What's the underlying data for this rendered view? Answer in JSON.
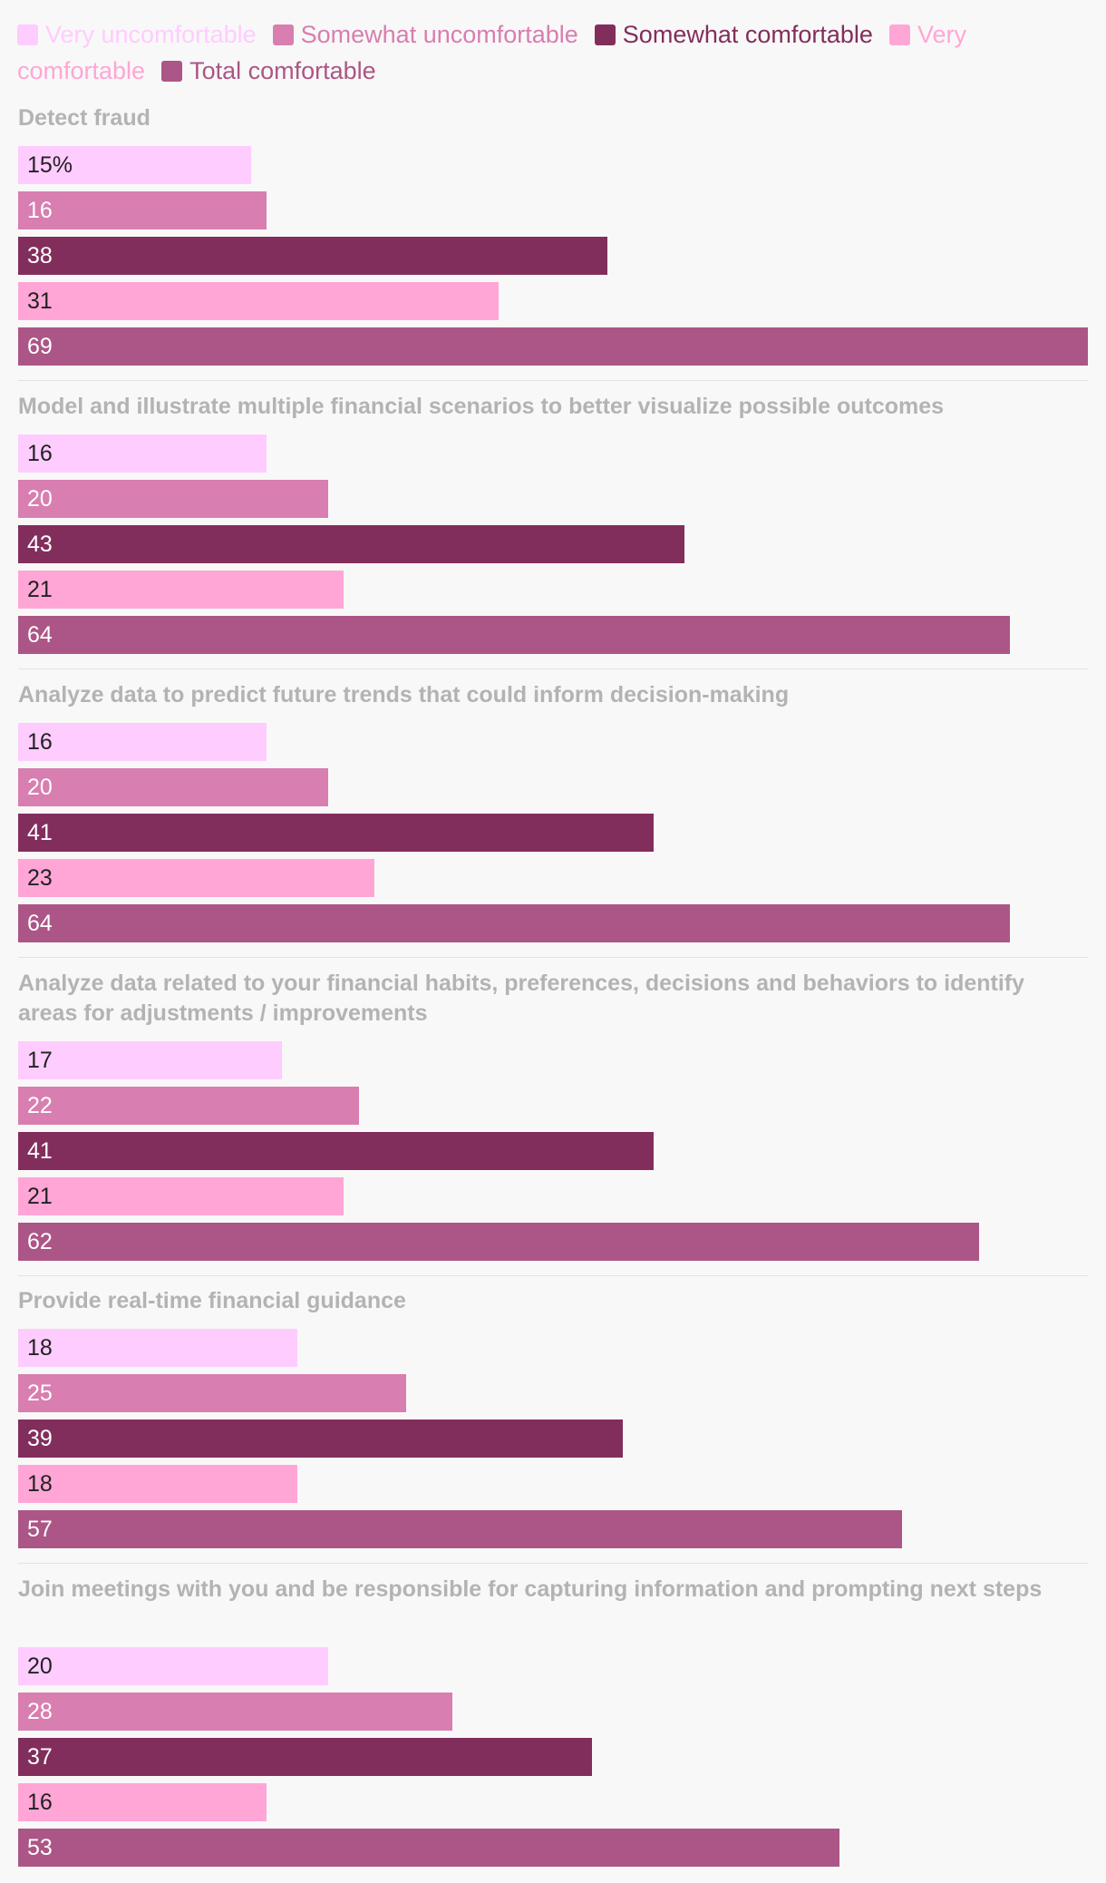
{
  "chart_data": {
    "type": "bar",
    "orientation": "horizontal",
    "unit": "%",
    "xlim": [
      0,
      69
    ],
    "grid": false,
    "legend_position": "top",
    "series": [
      {
        "name": "Very uncomfortable",
        "color": "#ffccff",
        "text_color": "#222222"
      },
      {
        "name": "Somewhat uncomfortable",
        "color": "#d87eb0",
        "text_color": "#ffffff"
      },
      {
        "name": "Somewhat comfortable",
        "color": "#822e5c",
        "text_color": "#ffffff"
      },
      {
        "name": "Very comfortable",
        "color": "#ffa6d6",
        "text_color": "#222222"
      },
      {
        "name": "Total comfortable",
        "color": "#ab5686",
        "text_color": "#ffffff"
      }
    ],
    "groups": [
      {
        "title": "Detect fraud",
        "values": [
          15,
          16,
          38,
          31,
          69
        ],
        "labels": [
          "15%",
          "16",
          "38",
          "31",
          "69"
        ]
      },
      {
        "title": "Model and illustrate multiple financial scenarios to better visualize possible outcomes",
        "values": [
          16,
          20,
          43,
          21,
          64
        ],
        "labels": [
          "16",
          "20",
          "43",
          "21",
          "64"
        ]
      },
      {
        "title": "Analyze data to predict future trends that could inform decision-making",
        "values": [
          16,
          20,
          41,
          23,
          64
        ],
        "labels": [
          "16",
          "20",
          "41",
          "23",
          "64"
        ]
      },
      {
        "title": "Analyze data related to your financial habits, preferences, decisions and behaviors to identify areas for adjustments / improvements",
        "values": [
          17,
          22,
          41,
          21,
          62
        ],
        "labels": [
          "17",
          "22",
          "41",
          "21",
          "62"
        ]
      },
      {
        "title": "Provide real-time financial guidance",
        "values": [
          18,
          25,
          39,
          18,
          57
        ],
        "labels": [
          "18",
          "25",
          "39",
          "18",
          "57"
        ]
      },
      {
        "title": "Join meetings with you and be responsible for capturing information and prompting next steps",
        "values": [
          20,
          28,
          37,
          16,
          53
        ],
        "labels": [
          "20",
          "28",
          "37",
          "16",
          "53"
        ]
      }
    ]
  }
}
